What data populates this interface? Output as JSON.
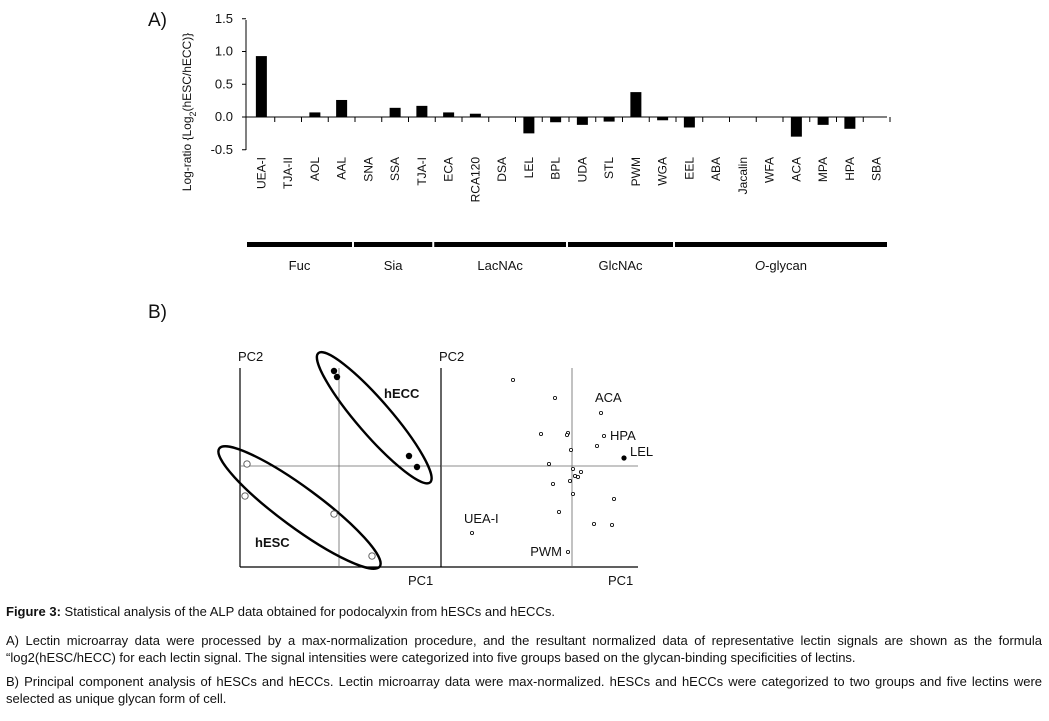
{
  "panel_labels": {
    "a": "A)",
    "b": "B)"
  },
  "chart_data": [
    {
      "type": "bar",
      "ylabel_parts": [
        "Log-ratio {Log",
        "2",
        "(hESC/hECC)}"
      ],
      "ylim": [
        -0.5,
        1.5
      ],
      "yticks": [
        "1.5",
        "1.0",
        "0.5",
        "0.0",
        "-0.5"
      ],
      "ytick_values": [
        1.5,
        1.0,
        0.5,
        0.0,
        -0.5
      ],
      "categories": [
        "UEA-I",
        "TJA-II",
        "AOL",
        "AAL",
        "SNA",
        "SSA",
        "TJA-I",
        "ECA",
        "RCA120",
        "DSA",
        "LEL",
        "BPL",
        "UDA",
        "STL",
        "PWM",
        "WGA",
        "EEL",
        "ABA",
        "Jacalin",
        "WFA",
        "ACA",
        "MPA",
        "HPA",
        "SBA"
      ],
      "values": [
        0.93,
        0.0,
        0.07,
        0.26,
        0.0,
        0.14,
        0.17,
        0.07,
        0.05,
        0.0,
        -0.25,
        -0.08,
        -0.12,
        -0.07,
        0.38,
        -0.05,
        -0.16,
        0.0,
        0.0,
        0.0,
        -0.3,
        -0.12,
        -0.18,
        0.0
      ],
      "groups": [
        {
          "label": "Fuc",
          "start": 0,
          "end": 3,
          "italic_prefix": ""
        },
        {
          "label": "Sia",
          "start": 4,
          "end": 6,
          "italic_prefix": ""
        },
        {
          "label": "LacNAc",
          "start": 7,
          "end": 11,
          "italic_prefix": ""
        },
        {
          "label": "GlcNAc",
          "start": 12,
          "end": 15,
          "italic_prefix": ""
        },
        {
          "label": "-glycan",
          "start": 16,
          "end": 23,
          "italic_prefix": "O"
        }
      ]
    },
    {
      "type": "scatter",
      "xlabel": "PC1",
      "ylabel": "PC2",
      "groups": [
        {
          "name": "hECC",
          "marker": "filled",
          "points": [
            [
              -0.05,
              0.95
            ],
            [
              -0.02,
              0.89
            ],
            [
              0.7,
              0.1
            ],
            [
              0.78,
              -0.01
            ]
          ]
        },
        {
          "name": "hESC",
          "marker": "open",
          "points": [
            [
              -0.92,
              0.02
            ],
            [
              -0.94,
              -0.3
            ],
            [
              -0.05,
              -0.48
            ],
            [
              0.33,
              -0.9
            ]
          ]
        }
      ]
    },
    {
      "type": "scatter",
      "xlabel": "PC1",
      "ylabel": "PC2",
      "points": [
        {
          "label": "",
          "x": -0.59,
          "y": 0.86
        },
        {
          "label": "",
          "x": -0.17,
          "y": 0.68
        },
        {
          "label": "ACA",
          "x": 0.29,
          "y": 0.53
        },
        {
          "label": "",
          "x": -0.31,
          "y": 0.32
        },
        {
          "label": "",
          "x": -0.04,
          "y": 0.33
        },
        {
          "label": "",
          "x": -0.05,
          "y": 0.31
        },
        {
          "label": "HPA",
          "x": 0.32,
          "y": 0.3
        },
        {
          "label": "",
          "x": 0.25,
          "y": 0.2
        },
        {
          "label": "",
          "x": -0.01,
          "y": 0.16
        },
        {
          "label": "LEL",
          "x": 0.52,
          "y": 0.08
        },
        {
          "label": "",
          "x": -0.23,
          "y": 0.02
        },
        {
          "label": "",
          "x": 0.01,
          "y": -0.03
        },
        {
          "label": "",
          "x": 0.09,
          "y": -0.06
        },
        {
          "label": "",
          "x": 0.03,
          "y": -0.1
        },
        {
          "label": "",
          "x": 0.06,
          "y": -0.11
        },
        {
          "label": "",
          "x": -0.02,
          "y": -0.15
        },
        {
          "label": "",
          "x": -0.19,
          "y": -0.18
        },
        {
          "label": "",
          "x": 0.42,
          "y": -0.33
        },
        {
          "label": "",
          "x": 0.01,
          "y": -0.28
        },
        {
          "label": "",
          "x": -0.13,
          "y": -0.46
        },
        {
          "label": "",
          "x": 0.22,
          "y": -0.58
        },
        {
          "label": "",
          "x": 0.4,
          "y": -0.59
        },
        {
          "label": "UEA-I",
          "x": -1.0,
          "y": -0.67
        },
        {
          "label": "PWM",
          "x": -0.04,
          "y": -0.86
        }
      ]
    }
  ],
  "caption": {
    "title_bold": "Figure 3:",
    "title_text": " Statistical analysis of the ALP data obtained for podocalyxin from hESCs and hECCs.",
    "para_a": "A) Lectin microarray data were processed by a max-normalization procedure, and the resultant normalized data of representative lectin signals are shown as the formula “log2(hESC/hECC) for each lectin signal. The signal intensities were categorized into five groups based on the glycan-binding specificities of lectins.",
    "para_b": "B) Principal component analysis of hESCs and hECCs. Lectin microarray data were max-normalized. hESCs and hECCs were categorized to two groups and five lectins were selected as unique glycan form of cell."
  },
  "colors": {
    "bar": "#000000",
    "axis": "#000000",
    "text": "#111111",
    "background": "#ffffff"
  }
}
